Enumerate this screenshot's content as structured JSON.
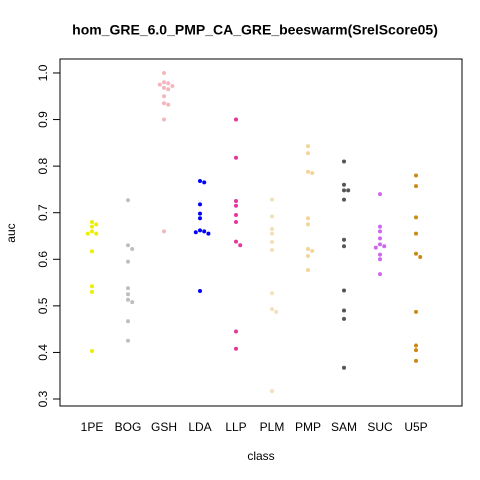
{
  "chart_data": {
    "type": "beeswarm",
    "title": "hom_GRE_6.0_PMP_CA_GRE_beeswarm(SrelScore05)",
    "xlabel": "class",
    "ylabel": "auc",
    "ylim": [
      0.285,
      1.03
    ],
    "yticks": [
      0.3,
      0.4,
      0.5,
      0.6,
      0.7,
      0.8,
      0.9,
      {
        "value": 1,
        "label": "1.0"
      }
    ],
    "series": [
      {
        "name": "1PE",
        "color": "#eeee00",
        "values": [
          0.68,
          0.675,
          0.67,
          0.66,
          0.655,
          0.655,
          0.617,
          0.542,
          0.53,
          0.403
        ]
      },
      {
        "name": "BOG",
        "color": "#bebebe",
        "values": [
          0.727,
          0.63,
          0.622,
          0.595,
          0.538,
          0.525,
          0.513,
          0.508,
          0.467,
          0.425
        ]
      },
      {
        "name": "GSH",
        "color": "#f4b6bc",
        "values": [
          1.0,
          0.98,
          0.978,
          0.975,
          0.972,
          0.968,
          0.965,
          0.95,
          0.935,
          0.932,
          0.9,
          0.66
        ]
      },
      {
        "name": "LDA",
        "color": "#0000ff",
        "values": [
          0.768,
          0.765,
          0.718,
          0.698,
          0.688,
          0.662,
          0.66,
          0.658,
          0.655,
          0.532
        ]
      },
      {
        "name": "LLP",
        "color": "#e8359d",
        "values": [
          0.9,
          0.818,
          0.725,
          0.715,
          0.695,
          0.68,
          0.638,
          0.63,
          0.445,
          0.408
        ]
      },
      {
        "name": "PLM",
        "color": "#f2e1b7",
        "values": [
          0.728,
          0.692,
          0.665,
          0.655,
          0.637,
          0.62,
          0.527,
          0.493,
          0.487,
          0.317
        ]
      },
      {
        "name": "PMP",
        "color": "#f3d597",
        "values": [
          0.843,
          0.828,
          0.788,
          0.785,
          0.688,
          0.675,
          0.622,
          0.618,
          0.607,
          0.577
        ]
      },
      {
        "name": "SAM",
        "color": "#555555",
        "values": [
          0.81,
          0.76,
          0.748,
          0.748,
          0.728,
          0.642,
          0.628,
          0.533,
          0.49,
          0.472,
          0.367
        ]
      },
      {
        "name": "SUC",
        "color": "#d166ef",
        "values": [
          0.74,
          0.67,
          0.66,
          0.645,
          0.632,
          0.628,
          0.625,
          0.61,
          0.6,
          0.568
        ]
      },
      {
        "name": "U5P",
        "color": "#cc8a14",
        "values": [
          0.78,
          0.757,
          0.69,
          0.655,
          0.612,
          0.605,
          0.487,
          0.415,
          0.405,
          0.382
        ]
      }
    ]
  }
}
